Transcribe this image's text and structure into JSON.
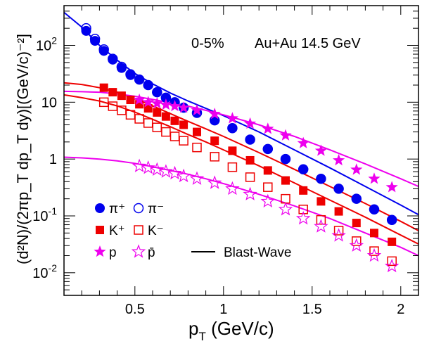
{
  "chart_data": {
    "type": "scatter",
    "annotation": {
      "centrality": "0-5%",
      "system": "Au+Au 14.5 GeV"
    },
    "xaxis": {
      "label_main": "p",
      "label_sub": "T",
      "label_units": " (GeV/c)",
      "range": [
        0.1,
        2.1
      ],
      "major_ticks": [
        0.5,
        1,
        1.5,
        2
      ],
      "tick_labels": [
        "0.5",
        "1",
        "1.5",
        "2"
      ]
    },
    "yaxis": {
      "label": "(d²N)/(2πp_T dp_T dy)[(GeV/c)⁻²]",
      "scale": "log",
      "range": [
        0.004,
        500
      ],
      "tick_labels": [
        {
          "value": 0.01,
          "base": "10",
          "exp": "-2"
        },
        {
          "value": 0.1,
          "base": "10",
          "exp": "-1"
        },
        {
          "value": 1,
          "base": "1",
          "exp": ""
        },
        {
          "value": 10,
          "base": "10",
          "exp": ""
        },
        {
          "value": 100,
          "base": "10",
          "exp": "2"
        }
      ]
    },
    "colors": {
      "pion": "#0000ee",
      "kaon": "#ee0000",
      "proton": "#ee00ee"
    },
    "series": [
      {
        "name": "π⁺",
        "marker": "circle-filled",
        "color": "#0000ee",
        "x": [
          0.225,
          0.275,
          0.325,
          0.375,
          0.425,
          0.475,
          0.525,
          0.575,
          0.625,
          0.675,
          0.725,
          0.775,
          0.85,
          0.95,
          1.05,
          1.15,
          1.25,
          1.35,
          1.45,
          1.55,
          1.65,
          1.75,
          1.85,
          1.95
        ],
        "y": [
          180,
          120,
          80,
          56,
          40,
          30,
          25,
          20,
          15,
          12,
          10,
          8,
          6.5,
          4.8,
          3.5,
          2.2,
          1.5,
          1.0,
          0.66,
          0.45,
          0.3,
          0.2,
          0.13,
          0.085
        ]
      },
      {
        "name": "π⁻",
        "marker": "circle-open",
        "color": "#0000ee",
        "x": [
          0.225,
          0.275,
          0.325,
          0.375,
          0.425,
          0.475,
          0.525,
          0.575,
          0.625,
          0.675,
          0.725,
          0.775,
          0.85,
          0.95,
          1.05,
          1.15,
          1.25,
          1.35,
          1.45,
          1.55,
          1.65,
          1.75,
          1.85,
          1.95
        ],
        "y": [
          200,
          130,
          85,
          58,
          42,
          31,
          25,
          20,
          15,
          12,
          10,
          8,
          6.5,
          4.8,
          3.5,
          2.2,
          1.5,
          1.0,
          0.66,
          0.45,
          0.3,
          0.2,
          0.13,
          0.085
        ]
      },
      {
        "name": "K⁺",
        "marker": "square-filled",
        "color": "#ee0000",
        "x": [
          0.325,
          0.375,
          0.425,
          0.475,
          0.525,
          0.575,
          0.625,
          0.675,
          0.725,
          0.775,
          0.85,
          0.95,
          1.05,
          1.15,
          1.25,
          1.35,
          1.45,
          1.55,
          1.65,
          1.75,
          1.85,
          1.95
        ],
        "y": [
          18,
          15,
          13,
          11,
          9.2,
          7.8,
          6.6,
          5.6,
          4.7,
          4.0,
          3.0,
          2.1,
          1.4,
          0.95,
          0.63,
          0.42,
          0.28,
          0.18,
          0.12,
          0.075,
          0.05,
          0.035
        ]
      },
      {
        "name": "K⁻",
        "marker": "square-open",
        "color": "#ee0000",
        "x": [
          0.325,
          0.375,
          0.425,
          0.475,
          0.525,
          0.575,
          0.625,
          0.675,
          0.725,
          0.775,
          0.85,
          0.95,
          1.05,
          1.15,
          1.25,
          1.35,
          1.45,
          1.55,
          1.65,
          1.75,
          1.85,
          1.95
        ],
        "y": [
          10,
          8.5,
          7.2,
          6.0,
          5.1,
          4.3,
          3.6,
          3.0,
          2.5,
          2.1,
          1.6,
          1.1,
          0.72,
          0.48,
          0.32,
          0.2,
          0.13,
          0.085,
          0.055,
          0.036,
          0.024,
          0.016
        ]
      },
      {
        "name": "p",
        "marker": "star-filled",
        "color": "#ee00ee",
        "x": [
          0.525,
          0.575,
          0.625,
          0.675,
          0.725,
          0.775,
          0.85,
          0.95,
          1.05,
          1.15,
          1.25,
          1.35,
          1.45,
          1.55,
          1.65,
          1.75,
          1.85,
          1.95
        ],
        "y": [
          11,
          10,
          9.5,
          9,
          8.5,
          8,
          7.2,
          6.2,
          5.2,
          4.2,
          3.4,
          2.6,
          1.9,
          1.4,
          0.95,
          0.65,
          0.45,
          0.32
        ]
      },
      {
        "name": "p̄",
        "marker": "star-open",
        "color": "#ee00ee",
        "x": [
          0.525,
          0.575,
          0.625,
          0.675,
          0.725,
          0.775,
          0.85,
          0.95,
          1.05,
          1.15,
          1.25,
          1.35,
          1.45,
          1.55,
          1.65,
          1.75,
          1.85,
          1.95
        ],
        "y": [
          0.75,
          0.7,
          0.65,
          0.6,
          0.56,
          0.5,
          0.45,
          0.38,
          0.3,
          0.24,
          0.18,
          0.13,
          0.09,
          0.065,
          0.045,
          0.03,
          0.02,
          0.013
        ]
      }
    ],
    "fits": [
      {
        "color": "#0000ee",
        "x": [
          0.1,
          0.2,
          0.3,
          0.4,
          0.5,
          0.6,
          0.7,
          0.8,
          0.9,
          1.0,
          1.2,
          1.4,
          1.6,
          1.8,
          2.0,
          2.1
        ],
        "y": [
          380,
          210,
          100,
          55,
          32,
          21,
          14.5,
          10.5,
          7.8,
          5.8,
          3.0,
          1.45,
          0.7,
          0.33,
          0.155,
          0.105
        ]
      },
      {
        "color": "#ee0000",
        "x": [
          0.1,
          0.2,
          0.3,
          0.4,
          0.5,
          0.6,
          0.7,
          0.8,
          0.9,
          1.0,
          1.2,
          1.4,
          1.6,
          1.8,
          2.0,
          2.1
        ],
        "y": [
          22,
          20.5,
          18,
          15,
          11.5,
          8.6,
          6.3,
          4.6,
          3.4,
          2.5,
          1.3,
          0.66,
          0.33,
          0.165,
          0.08,
          0.055
        ]
      },
      {
        "color": "#ee0000",
        "x": [
          0.1,
          0.2,
          0.3,
          0.4,
          0.5,
          0.6,
          0.7,
          0.8,
          0.9,
          1.0,
          1.2,
          1.4,
          1.6,
          1.8,
          2.0,
          2.1
        ],
        "y": [
          13.5,
          12,
          10.5,
          8.6,
          6.7,
          5.0,
          3.7,
          2.7,
          2.0,
          1.45,
          0.76,
          0.38,
          0.19,
          0.095,
          0.046,
          0.032
        ]
      },
      {
        "color": "#ee00ee",
        "x": [
          0.1,
          0.2,
          0.3,
          0.4,
          0.5,
          0.6,
          0.7,
          0.8,
          0.9,
          1.0,
          1.2,
          1.4,
          1.6,
          1.8,
          2.0,
          2.1
        ],
        "y": [
          15.5,
          15.3,
          15,
          14,
          12.7,
          11.2,
          9.8,
          8.5,
          7.2,
          6.0,
          4.0,
          2.5,
          1.45,
          0.82,
          0.45,
          0.33
        ]
      },
      {
        "color": "#ee00ee",
        "x": [
          0.1,
          0.2,
          0.3,
          0.4,
          0.5,
          0.6,
          0.7,
          0.8,
          0.9,
          1.0,
          1.2,
          1.4,
          1.6,
          1.8,
          2.0,
          2.1
        ],
        "y": [
          1.08,
          1.05,
          1.0,
          0.93,
          0.84,
          0.73,
          0.63,
          0.54,
          0.45,
          0.37,
          0.24,
          0.15,
          0.09,
          0.05,
          0.028,
          0.02
        ]
      }
    ],
    "legend": {
      "placement": "bottom-left",
      "rows": [
        [
          "π⁺",
          "π⁻"
        ],
        [
          "K⁺",
          "K⁻"
        ],
        [
          "p",
          "p̄"
        ]
      ],
      "fit_label": "Blast-Wave"
    }
  }
}
